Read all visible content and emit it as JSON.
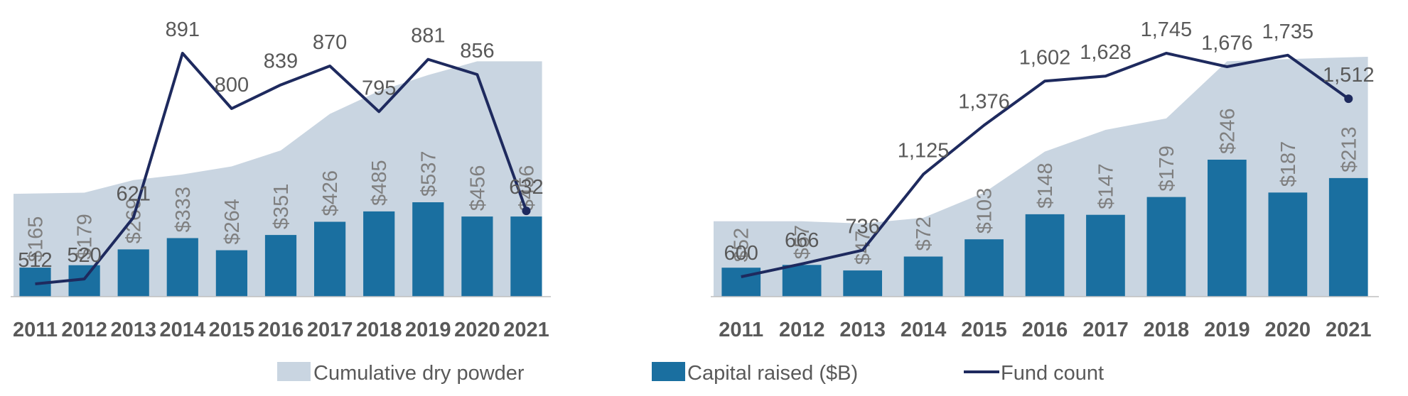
{
  "colors": {
    "dry_powder": "#c9d5e1",
    "capital_raised": "#1a6fa0",
    "fund_count": "#1e2a5e",
    "axis": "#bfbfbf",
    "label_text": "#7f7f7f",
    "tick_text": "#595959"
  },
  "legend": {
    "dry_powder": "Cumulative dry powder",
    "capital_raised": "Capital raised ($B)",
    "fund_count": "Fund count"
  },
  "chart_data": [
    {
      "type": "bar",
      "categories": [
        "2011",
        "2012",
        "2013",
        "2014",
        "2015",
        "2016",
        "2017",
        "2018",
        "2019",
        "2020",
        "2021"
      ],
      "series": [
        {
          "name": "Capital raised ($B)",
          "kind": "bar",
          "values": [
            165,
            179,
            269,
            333,
            264,
            351,
            426,
            485,
            537,
            456,
            456
          ],
          "labels": [
            "$165",
            "$179",
            "$269",
            "$333",
            "$264",
            "$351",
            "$426",
            "$485",
            "$537",
            "$456",
            "$456"
          ]
        },
        {
          "name": "Fund count",
          "kind": "line",
          "values": [
            512,
            520,
            621,
            891,
            800,
            839,
            870,
            795,
            881,
            856,
            632
          ],
          "labels": [
            "512",
            "520",
            "621",
            "891",
            "800",
            "839",
            "870",
            "795",
            "881",
            "856",
            "632"
          ]
        },
        {
          "name": "Cumulative dry powder",
          "kind": "area",
          "values": [
            0.45,
            0.455,
            0.51,
            0.535,
            0.57,
            0.64,
            0.8,
            0.9,
            0.97,
            1.03,
            1.03
          ]
        }
      ],
      "bar_ylim": [
        0,
        650
      ],
      "line_ylim": [
        0,
        1000
      ],
      "legend_position": "bottom",
      "grid": false
    },
    {
      "type": "bar",
      "categories": [
        "2011",
        "2012",
        "2013",
        "2014",
        "2015",
        "2016",
        "2017",
        "2018",
        "2019",
        "2020",
        "2021"
      ],
      "series": [
        {
          "name": "Capital raised ($B)",
          "kind": "bar",
          "values": [
            52,
            57,
            47,
            72,
            103,
            148,
            147,
            179,
            246,
            187,
            213
          ],
          "labels": [
            "$52",
            "$57",
            "$47",
            "$72",
            "$103",
            "$148",
            "$147",
            "$179",
            "$246",
            "$187",
            "$213"
          ]
        },
        {
          "name": "Fund count",
          "kind": "line",
          "values": [
            600,
            666,
            736,
            1125,
            1376,
            1602,
            1628,
            1745,
            1676,
            1735,
            1512
          ],
          "labels": [
            "600",
            "666",
            "736",
            "1,125",
            "1,376",
            "1,602",
            "1,628",
            "1,745",
            "1,676",
            "1,735",
            "1,512"
          ]
        },
        {
          "name": "Cumulative dry powder",
          "kind": "area",
          "values": [
            0.33,
            0.33,
            0.32,
            0.345,
            0.455,
            0.635,
            0.73,
            0.78,
            1.03,
            1.04,
            1.05
          ]
        }
      ],
      "bar_ylim": [
        0,
        320
      ],
      "line_ylim": [
        0,
        1950
      ],
      "legend_position": "bottom",
      "grid": false
    }
  ]
}
